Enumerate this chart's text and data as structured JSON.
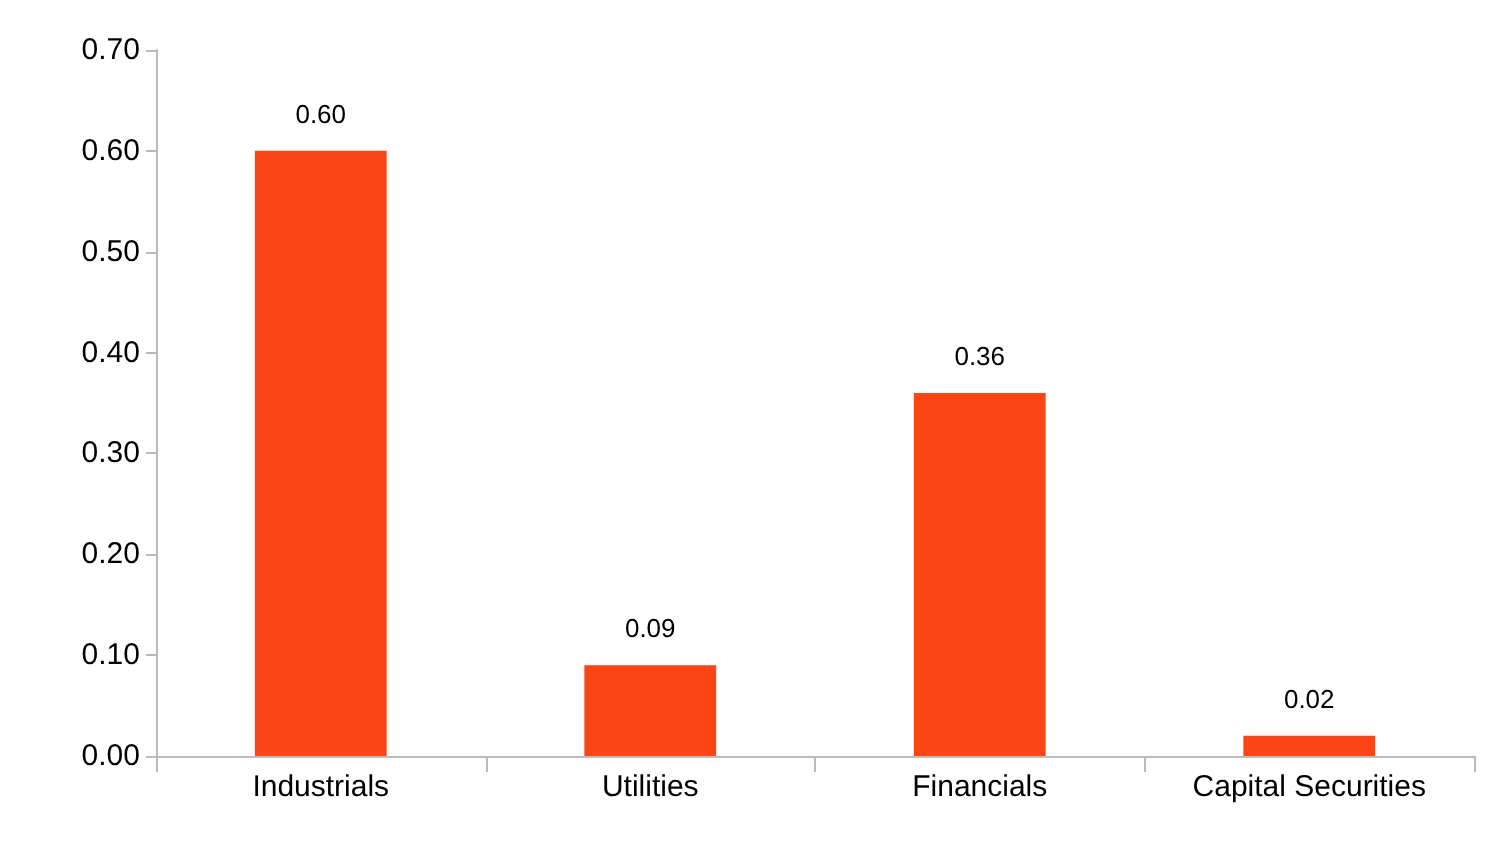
{
  "chart_data": {
    "type": "bar",
    "categories": [
      "Industrials",
      "Utilities",
      "Financials",
      "Capital Securities"
    ],
    "values": [
      0.6,
      0.09,
      0.36,
      0.02
    ],
    "value_labels": [
      "0.60",
      "0.09",
      "0.36",
      "0.02"
    ],
    "color": "#fc4515",
    "ylim": [
      0,
      0.7
    ],
    "yticks": [
      {
        "value": 0,
        "label": "0.00"
      },
      {
        "value": 0.1,
        "label": "0.10"
      },
      {
        "value": 0.2,
        "label": "0.20"
      },
      {
        "value": 0.3,
        "label": "0.30"
      },
      {
        "value": 0.4,
        "label": "0.40"
      },
      {
        "value": 0.5,
        "label": "0.50"
      },
      {
        "value": 0.6,
        "label": "0.60"
      },
      {
        "value": 0.7,
        "label": "0.70"
      }
    ],
    "grid": false
  }
}
